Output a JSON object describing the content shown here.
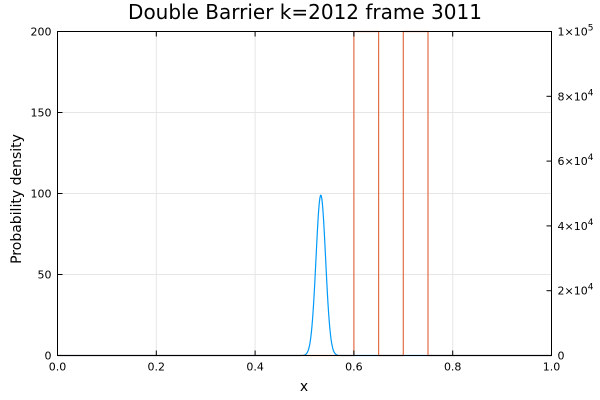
{
  "chart_data": {
    "type": "line",
    "title": "Double Barrier k=2012 frame 3011",
    "xlabel": "x",
    "ylabel": "Probability density",
    "xlim": [
      0.0,
      1.0
    ],
    "ylim": [
      0,
      200
    ],
    "y2lim": [
      0,
      100000
    ],
    "grid": true,
    "x_ticks": [
      "0.0",
      "0.2",
      "0.4",
      "0.6",
      "0.8",
      "1.0"
    ],
    "x_tick_values": [
      0.0,
      0.2,
      0.4,
      0.6,
      0.8,
      1.0
    ],
    "y_ticks": [
      "0",
      "50",
      "100",
      "150",
      "200"
    ],
    "y_tick_values": [
      0,
      50,
      100,
      150,
      200
    ],
    "y2_ticks": [
      {
        "value": 0,
        "base": "0",
        "exp": ""
      },
      {
        "value": 20000,
        "base": "2×10",
        "exp": "4"
      },
      {
        "value": 40000,
        "base": "4×10",
        "exp": "4"
      },
      {
        "value": 60000,
        "base": "6×10",
        "exp": "4"
      },
      {
        "value": 80000,
        "base": "8×10",
        "exp": "4"
      },
      {
        "value": 100000,
        "base": "1×10",
        "exp": "5"
      }
    ],
    "series": [
      {
        "axis": "left",
        "color": "#009af9",
        "shape": "gaussian",
        "center": 0.533,
        "peak": 99,
        "sigma": 0.0097
      },
      {
        "axis": "right",
        "color": "#e26f46",
        "x": [
          0.0,
          0.6,
          0.6,
          0.65,
          0.65,
          0.7,
          0.7,
          0.75,
          0.75,
          1.0
        ],
        "y": [
          0,
          0,
          100000,
          100000,
          0,
          0,
          100000,
          100000,
          0,
          0
        ]
      }
    ]
  }
}
